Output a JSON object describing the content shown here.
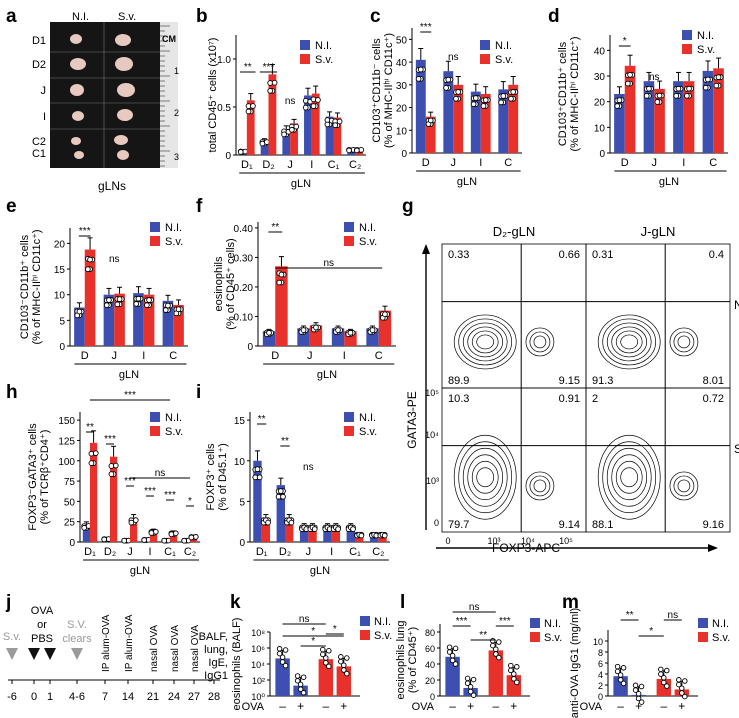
{
  "colors": {
    "ni": "#3d4fb0",
    "sv": "#e8312a",
    "grey": "#9a9a9a",
    "black": "#111111"
  },
  "panel_letters": [
    "a",
    "b",
    "c",
    "d",
    "e",
    "f",
    "g",
    "h",
    "i",
    "j",
    "k",
    "l",
    "m"
  ],
  "panel_a": {
    "col_labels": [
      "N.I.",
      "S.v."
    ],
    "row_labels": [
      "D1",
      "D2",
      "J",
      "I",
      "C2",
      "C1"
    ],
    "ruler_unit": "CM",
    "ruler_marks": [
      "1",
      "2",
      "3"
    ],
    "xlabel": "gLNs"
  },
  "chart_data": [
    {
      "id": "b",
      "type": "bar",
      "ylabel": "total CD45⁺ cells (x10⁷)",
      "ylim": [
        0,
        1.25
      ],
      "yticks": [
        "0",
        "0.5",
        "1.0"
      ],
      "ytick_values": [
        0,
        0.5,
        1.0
      ],
      "categories": [
        "D₁",
        "D₂",
        "J",
        "I",
        "C₁",
        "C₂"
      ],
      "group_label": "gLN",
      "series": [
        {
          "name": "N.I.",
          "values": [
            0.04,
            0.15,
            0.27,
            0.62,
            0.4,
            0.06
          ]
        },
        {
          "name": "S.v.",
          "values": [
            0.57,
            0.84,
            0.33,
            0.64,
            0.39,
            0.06
          ]
        }
      ],
      "sig": [
        "**",
        "***",
        "ns"
      ]
    },
    {
      "id": "c",
      "type": "bar",
      "ylabel_lines": [
        "CD103⁺CD11b⁻ cells",
        "(% of MHC-IIʰⁱ CD11c⁺)"
      ],
      "ylim": [
        0,
        55
      ],
      "yticks": [
        "0",
        "10",
        "20",
        "30",
        "40",
        "50"
      ],
      "ytick_values": [
        0,
        10,
        20,
        30,
        40,
        50
      ],
      "categories": [
        "D",
        "J",
        "I",
        "C"
      ],
      "group_label": "gLN",
      "series": [
        {
          "name": "N.I.",
          "values": [
            41,
            36,
            27,
            28
          ]
        },
        {
          "name": "S.v.",
          "values": [
            16,
            30,
            26,
            30
          ]
        }
      ],
      "sig": [
        "***",
        "ns"
      ]
    },
    {
      "id": "d",
      "type": "bar",
      "ylabel_lines": [
        "CD103⁺CD11b⁺ cells",
        "(% of MHC-IIʰⁱ CD11c⁺)"
      ],
      "ylim": [
        0,
        46
      ],
      "yticks": [
        "0",
        "10",
        "20",
        "30",
        "40"
      ],
      "ytick_values": [
        0,
        10,
        20,
        30,
        40
      ],
      "categories": [
        "D",
        "J",
        "I",
        "C"
      ],
      "group_label": "gLN",
      "series": [
        {
          "name": "N.I.",
          "values": [
            23,
            28,
            28,
            32
          ]
        },
        {
          "name": "S.v.",
          "values": [
            34,
            25,
            28,
            33
          ]
        }
      ],
      "sig": [
        "*",
        "ns"
      ]
    },
    {
      "id": "e",
      "type": "bar",
      "ylabel_lines": [
        "CD103⁻CD11b⁺ cells",
        "(% of MHC-IIʰⁱ CD11c⁺)"
      ],
      "ylim": [
        0,
        23
      ],
      "yticks": [
        "0",
        "5",
        "10",
        "15",
        "20"
      ],
      "ytick_values": [
        0,
        5,
        10,
        15,
        20
      ],
      "categories": [
        "D",
        "J",
        "I",
        "C"
      ],
      "group_label": "gLN",
      "series": [
        {
          "name": "N.I.",
          "values": [
            7.5,
            10.0,
            10.3,
            8.8
          ]
        },
        {
          "name": "S.v.",
          "values": [
            18.8,
            10.2,
            10.0,
            8.0
          ]
        }
      ],
      "sig": [
        "***",
        "ns"
      ]
    },
    {
      "id": "f",
      "type": "bar",
      "ylabel_lines": [
        "eosinophils",
        "(% of CD45⁺ cells)"
      ],
      "ylim": [
        0,
        0.42
      ],
      "yticks": [
        "0",
        "0.10",
        "0.20",
        "0.30",
        "0.40"
      ],
      "ytick_values": [
        0,
        0.1,
        0.2,
        0.3,
        0.4
      ],
      "categories": [
        "D",
        "J",
        "I",
        "C"
      ],
      "group_label": "gLN",
      "series": [
        {
          "name": "N.I.",
          "values": [
            0.05,
            0.06,
            0.06,
            0.06
          ]
        },
        {
          "name": "S.v.",
          "values": [
            0.27,
            0.07,
            0.05,
            0.12
          ]
        }
      ],
      "sig": [
        "**",
        "ns"
      ]
    },
    {
      "id": "h",
      "type": "bar",
      "ylabel_lines": [
        "FOXP3⁻GATA3⁺ cells",
        "(% of TCRβ⁺CD4⁺)"
      ],
      "ylim": [
        0,
        160
      ],
      "yticks": [
        "0",
        "25",
        "50",
        "75",
        "100",
        "125",
        "150"
      ],
      "ytick_values": [
        0,
        25,
        50,
        75,
        100,
        125,
        150
      ],
      "categories": [
        "D₁",
        "D₂",
        "J",
        "I",
        "C₁",
        "C₂"
      ],
      "group_label": "gLN",
      "series": [
        {
          "name": "N.I.",
          "values": [
            22,
            4,
            2,
            3,
            2,
            2
          ]
        },
        {
          "name": "S.v.",
          "values": [
            122,
            105,
            30,
            14,
            12,
            7
          ]
        }
      ],
      "sig": [
        "**",
        "***",
        "***",
        "***",
        "***",
        "*",
        "***",
        "ns"
      ]
    },
    {
      "id": "i",
      "type": "bar",
      "ylabel_lines": [
        "FOXP3⁺ cells",
        "(% of D45.1⁺)"
      ],
      "ylim": [
        0,
        16
      ],
      "yticks": [
        "0",
        "5",
        "10",
        "15"
      ],
      "ytick_values": [
        0,
        5,
        10,
        15
      ],
      "categories": [
        "D₁",
        "D₂",
        "J",
        "I",
        "C₁",
        "C₂"
      ],
      "group_label": "gLN",
      "series": [
        {
          "name": "N.I.",
          "values": [
            10,
            7,
            2,
            2,
            2,
            1
          ]
        },
        {
          "name": "S.v.",
          "values": [
            3,
            3,
            2,
            2,
            1,
            1
          ]
        }
      ],
      "sig": [
        "**",
        "**",
        "ns"
      ]
    },
    {
      "id": "k",
      "type": "bar",
      "log": true,
      "ylabel": "eosinophils (BALF)",
      "yticks": [
        "10⁸",
        "10⁶",
        "10⁴",
        "10²",
        "10⁰"
      ],
      "categories": [
        "–",
        "+",
        "–",
        "+"
      ],
      "xlabel": "OVA",
      "values": [
        50000,
        20,
        40000,
        5000
      ],
      "bar_series": [
        "N.I.",
        "N.I.",
        "S.v.",
        "S.v."
      ],
      "sig": [
        "ns",
        "*",
        "*",
        "*"
      ]
    },
    {
      "id": "l",
      "type": "bar",
      "ylabel_lines": [
        "eosinophils lung",
        "(% of CD45⁺)"
      ],
      "ylim": [
        0,
        90
      ],
      "yticks": [
        "0",
        "20",
        "40",
        "60",
        "80"
      ],
      "ytick_values": [
        0,
        20,
        40,
        60,
        80
      ],
      "categories": [
        "–",
        "+",
        "–",
        "+"
      ],
      "xlabel": "OVA",
      "values": [
        49,
        10,
        57,
        26
      ],
      "bar_series": [
        "N.I.",
        "N.I.",
        "S.v.",
        "S.v."
      ],
      "sig": [
        "ns",
        "***",
        "**",
        "***"
      ]
    },
    {
      "id": "m",
      "type": "bar",
      "ylabel": "anti-OVA IgG1 (mg/ml)",
      "ylim": [
        0,
        12
      ],
      "yticks": [
        "0",
        "2",
        "4",
        "6",
        "8",
        "10"
      ],
      "ytick_values": [
        0,
        2,
        4,
        6,
        8,
        10
      ],
      "categories": [
        "–",
        "+",
        "–",
        "+"
      ],
      "xlabel": "OVA",
      "values": [
        3.6,
        0.2,
        3.1,
        1.2
      ],
      "bar_series": [
        "N.I.",
        "N.I.",
        "S.v.",
        "S.v."
      ],
      "sig": [
        "**",
        "ns",
        "*"
      ]
    }
  ],
  "panel_g": {
    "col_titles": [
      "D₂-gLN",
      "J-gLN"
    ],
    "row_labels": [
      "N.I",
      "S.v"
    ],
    "ylabel": "GATA3-PE",
    "xlabel": "FOXP3-APC",
    "x_ticks": [
      "0",
      "10³",
      "10⁴",
      "10⁵"
    ],
    "y_ticks": [
      "10⁵",
      "10⁴",
      "10³",
      "0"
    ],
    "quadrants": [
      [
        "0.33",
        "0.66",
        "89.9",
        "9.15"
      ],
      [
        "0.31",
        "0.4",
        "91.3",
        "8.01"
      ],
      [
        "10.3",
        "0.91",
        "79.7",
        "9.14"
      ],
      [
        "2",
        "0.72",
        "88.1",
        "9.16"
      ]
    ]
  },
  "panel_j": {
    "events": [
      "S.v.",
      "OVA",
      "or",
      "PBS",
      "S.V.",
      "clears",
      "IP alum-OVA",
      "IP alum-OVA",
      "nasal OVA",
      "nasal OVA",
      "nasal OVA",
      "BALF,",
      "lung,",
      "IgE,",
      "IgG1"
    ],
    "days": [
      "-6",
      "0",
      "1",
      "4-6",
      "7",
      "14",
      "21",
      "24",
      "27",
      "28"
    ]
  }
}
